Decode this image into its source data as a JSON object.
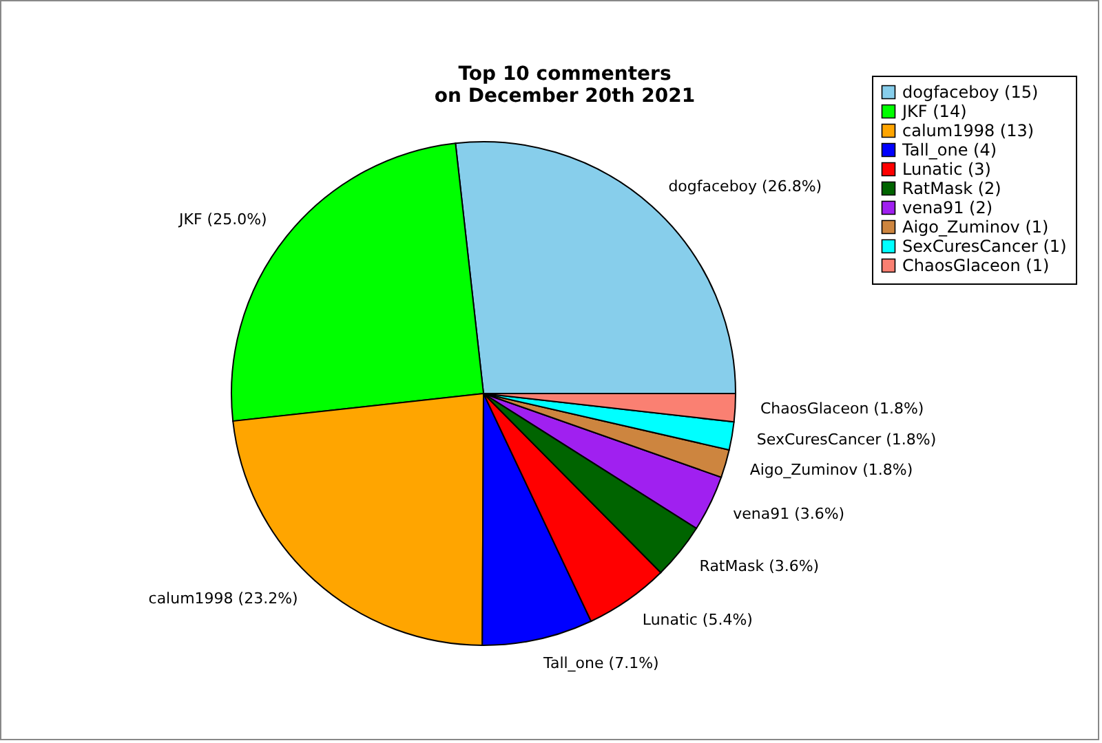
{
  "chart_data": {
    "type": "pie",
    "title": [
      "Top 10 commenters",
      "on December 20th 2021"
    ],
    "categories": [
      "dogfaceboy (15)",
      "JKF (14)",
      "calum1998 (13)",
      "Tall_one (4)",
      "Lunatic (3)",
      "RatMask (2)",
      "vena91 (2)",
      "Aigo_Zuminov (1)",
      "SexCuresCancer (1)",
      "ChaosGlaceon (1)"
    ],
    "values": [
      26.8,
      25.0,
      23.2,
      7.1,
      5.4,
      3.6,
      3.6,
      1.8,
      1.8,
      1.8
    ],
    "colors": [
      "#87ceeb",
      "#00ff00",
      "#ffa500",
      "#0000ff",
      "#ff0000",
      "#006400",
      "#a020f0",
      "#cd853f",
      "#00ffff",
      "#fa8072"
    ],
    "value_labels": [
      "dogfaceboy (26.8%)",
      "JKF (25.0%)",
      "calum1998 (23.2%)",
      "Tall_one (7.1%)",
      "Lunatic (5.4%)",
      "RatMask (3.6%)",
      "vena91 (3.6%)",
      "Aigo_Zuminov (1.8%)",
      "SexCuresCancer (1.8%)",
      "ChaosGlaceon (1.8%)"
    ],
    "legend": "top right"
  }
}
